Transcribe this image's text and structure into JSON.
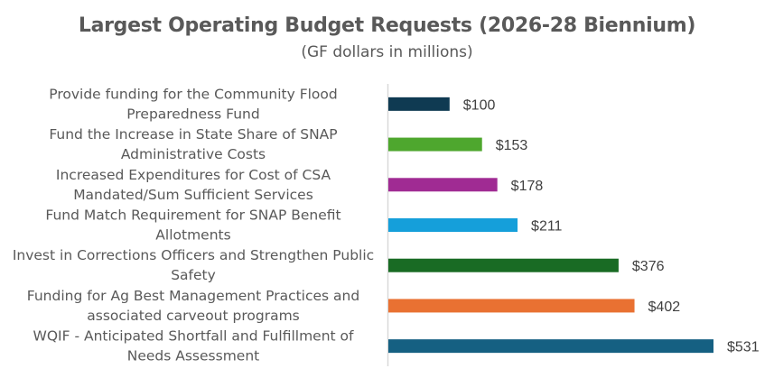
{
  "chart_data": {
    "type": "bar",
    "orientation": "horizontal",
    "title": "Largest Operating Budget Requests (2026-28 Biennium)",
    "subtitle": "(GF dollars in millions)",
    "xlabel": "",
    "ylabel": "",
    "xlim": [
      0,
      531
    ],
    "grid": false,
    "legend": "none",
    "value_prefix": "$",
    "categories": [
      [
        "Provide funding for the Community Flood",
        "Preparedness Fund"
      ],
      [
        "Fund the Increase in State Share of SNAP",
        "Administrative Costs"
      ],
      [
        "Increased Expenditures for Cost of CSA",
        "Mandated/Sum Sufficient Services"
      ],
      [
        "Fund Match Requirement for SNAP Benefit",
        "Allotments"
      ],
      [
        "Invest in Corrections Officers and Strengthen Public",
        "Safety"
      ],
      [
        "Funding for Ag Best Management Practices and",
        "associated carveout programs"
      ],
      [
        "WQIF - Anticipated Shortfall and Fulfillment of",
        "Needs Assessment"
      ]
    ],
    "values": [
      100,
      153,
      178,
      211,
      376,
      402,
      531
    ],
    "data_labels": [
      "$100",
      "$153",
      "$178",
      "$211",
      "$376",
      "$402",
      "$531"
    ],
    "colors": [
      "#0f3a52",
      "#4ea72e",
      "#a02b93",
      "#159fda",
      "#196b24",
      "#e97132",
      "#156082"
    ]
  }
}
